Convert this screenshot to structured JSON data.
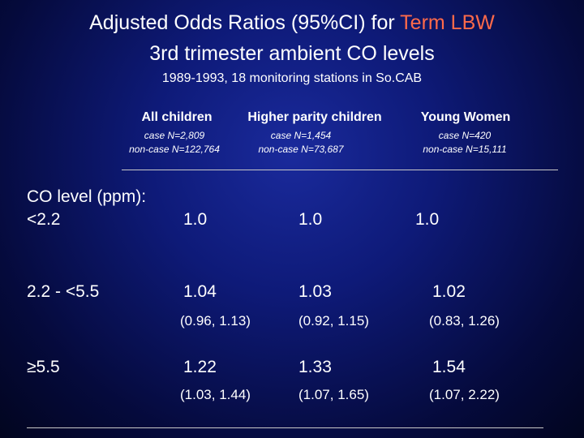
{
  "title": {
    "line1_prefix": "Adjusted Odds Ratios (95%CI) for ",
    "line1_highlight": "Term LBW",
    "line2": "3rd trimester ambient CO levels",
    "line3": "1989-1993, 18 monitoring stations in So.CAB",
    "highlight_color": "#ff6a4a"
  },
  "columns": [
    {
      "header": "All children",
      "case": "case N=2,809",
      "noncase": "non-case N=122,764"
    },
    {
      "header": "Higher parity children",
      "case": "case N=1,454",
      "noncase": "non-case N=73,687"
    },
    {
      "header": "Young Women",
      "case": "case N=420",
      "noncase": "non-case N=15,111"
    }
  ],
  "rows_header": "CO level (ppm):",
  "rows": [
    {
      "label": "<2.2",
      "values": [
        "1.0",
        "1.0",
        "1.0"
      ],
      "ci": [
        "",
        "",
        ""
      ]
    },
    {
      "label": "2.2 - <5.5",
      "values": [
        "1.04",
        "1.03",
        "1.02"
      ],
      "ci": [
        "(0.96, 1.13)",
        "(0.92, 1.15)",
        "(0.83, 1.26)"
      ]
    },
    {
      "label": "≥5.5",
      "values": [
        "1.22",
        "1.33",
        "1.54"
      ],
      "ci": [
        "(1.03, 1.44)",
        "(1.07, 1.65)",
        "(1.07, 2.22)"
      ]
    }
  ]
}
